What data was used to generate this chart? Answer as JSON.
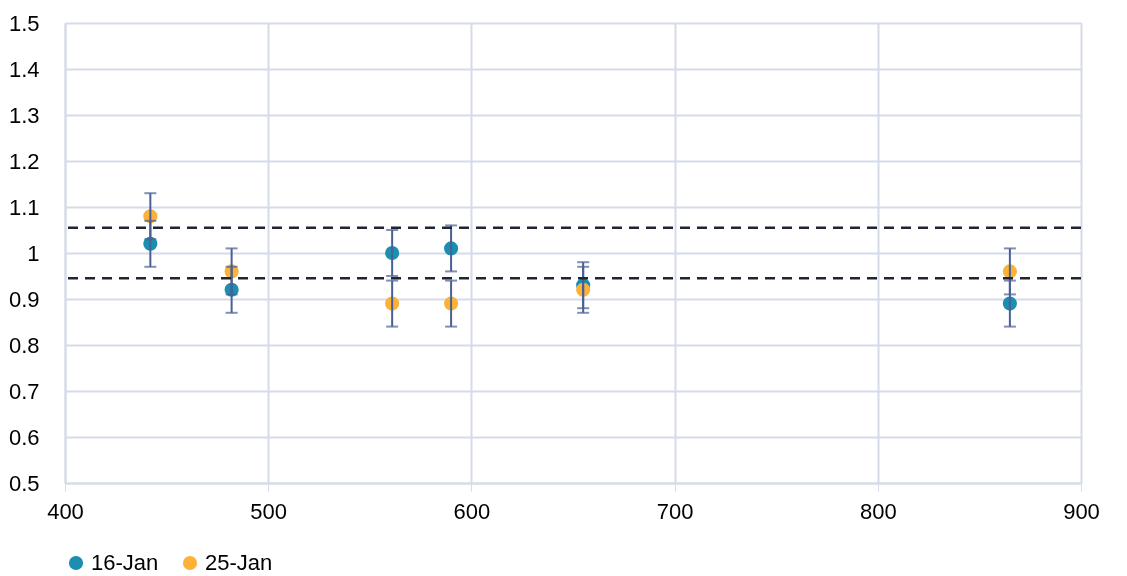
{
  "chart_data": {
    "type": "scatter",
    "x": [
      442,
      482,
      561,
      590,
      655,
      865
    ],
    "series": [
      {
        "name": "16-Jan",
        "color": "#1a8fb0",
        "values": [
          1.02,
          0.92,
          1.0,
          1.01,
          0.93,
          0.89
        ],
        "errors": [
          0.05,
          0.05,
          0.05,
          0.05,
          0.05,
          0.05
        ]
      },
      {
        "name": "25-Jan",
        "color": "#fbb236",
        "values": [
          1.08,
          0.96,
          0.89,
          0.89,
          0.92,
          0.96
        ],
        "errors": [
          0.05,
          0.05,
          0.05,
          0.05,
          0.05,
          0.05
        ]
      }
    ],
    "xlim": [
      400,
      900
    ],
    "xticks": [
      400,
      500,
      600,
      700,
      800,
      900
    ],
    "ylim": [
      0.5,
      1.5
    ],
    "yticks": [
      0.5,
      0.6,
      0.7,
      0.8,
      0.9,
      1,
      1.1,
      1.2,
      1.3,
      1.4,
      1.5
    ],
    "ref_lines": [
      {
        "axis": "y",
        "value": 1.055,
        "color": "#1f2533",
        "line_style": "dashed"
      },
      {
        "axis": "y",
        "value": 0.945,
        "color": "#1f2533",
        "line_style": "dashed"
      }
    ],
    "grid": true,
    "legend": "bottom",
    "marker": "circle"
  }
}
